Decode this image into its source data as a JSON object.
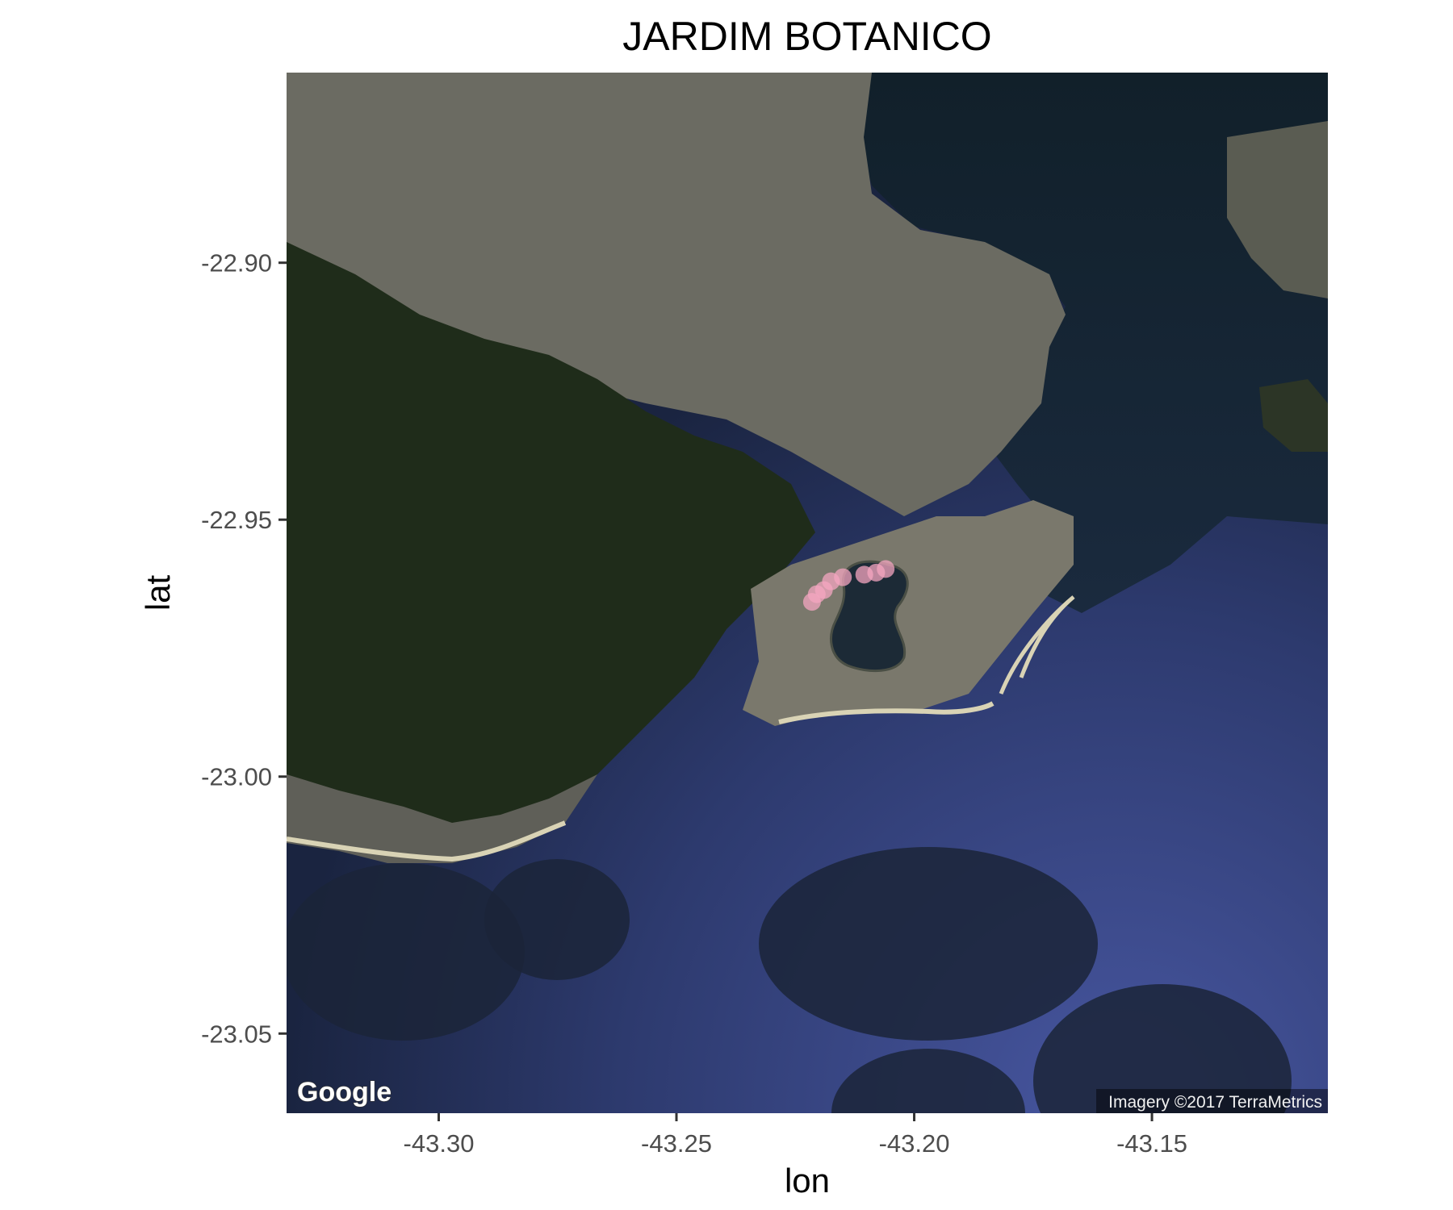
{
  "map": {
    "title": "JARDIM BOTANICO",
    "x_axis": {
      "title": "lon",
      "ticks": [
        {
          "value": -43.3,
          "label": "-43.30"
        },
        {
          "value": -43.25,
          "label": "-43.25"
        },
        {
          "value": -43.2,
          "label": "-43.20"
        },
        {
          "value": -43.15,
          "label": "-43.15"
        }
      ],
      "range": [
        -43.332,
        -43.113
      ]
    },
    "y_axis": {
      "title": "lat",
      "ticks": [
        {
          "value": -22.9,
          "label": "-22.90"
        },
        {
          "value": -22.95,
          "label": "-22.95"
        },
        {
          "value": -23.0,
          "label": "-23.00"
        },
        {
          "value": -23.05,
          "label": "-23.05"
        }
      ],
      "range": [
        -23.0655,
        -22.863
      ]
    },
    "basemap": "satellite",
    "google_logo": "Google",
    "attribution": "Imagery ©2017 TerraMetrics",
    "colors": {
      "point": "#f4a6c0",
      "ocean": "#3a4a8a",
      "forest": "#1f2c1a",
      "urban": "#6b6b62"
    },
    "points": [
      {
        "lon": -43.2215,
        "lat": -22.966
      },
      {
        "lon": -43.2205,
        "lat": -22.9645
      },
      {
        "lon": -43.219,
        "lat": -22.9637
      },
      {
        "lon": -43.2175,
        "lat": -22.962
      },
      {
        "lon": -43.215,
        "lat": -22.9612
      },
      {
        "lon": -43.2105,
        "lat": -22.9607
      },
      {
        "lon": -43.208,
        "lat": -22.9603
      },
      {
        "lon": -43.206,
        "lat": -22.9596
      }
    ]
  }
}
